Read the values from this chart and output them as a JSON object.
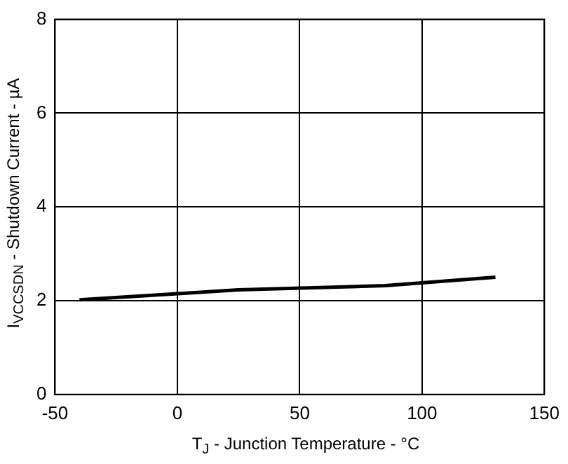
{
  "chart_data": {
    "type": "line",
    "xlabel": "T$_{J}$ - Junction Temperature - °C",
    "ylabel": "I$_{VCCSDN}$ - Shutdown Current - µA",
    "x": [
      -40,
      0,
      25,
      85,
      130
    ],
    "series": [
      {
        "color": "#000000",
        "values": [
          2.02,
          2.15,
          2.23,
          2.32,
          2.5
        ]
      }
    ],
    "xlim": [
      -50,
      150
    ],
    "xticks": [
      -50,
      0,
      50,
      100,
      150
    ],
    "ylim": [
      0,
      8
    ],
    "yticks": [
      0,
      2,
      4,
      6,
      8
    ],
    "grid": true,
    "legend": false,
    "marker": "none",
    "line_style": "solid"
  }
}
